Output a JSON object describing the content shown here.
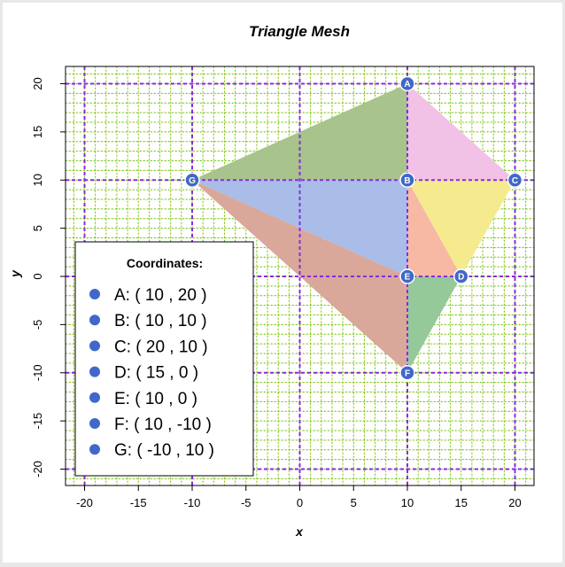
{
  "chart_data": {
    "type": "scatter",
    "title": "Triangle Mesh",
    "xlabel": "x",
    "ylabel": "y",
    "xlim": [
      -22,
      22
    ],
    "ylim": [
      -22,
      22
    ],
    "x_ticks": [
      -20,
      -15,
      -10,
      -5,
      0,
      5,
      10,
      15,
      20
    ],
    "y_ticks": [
      -20,
      -15,
      -10,
      -5,
      0,
      5,
      10,
      15,
      20
    ],
    "major_grid": [
      -20,
      -10,
      0,
      10,
      20
    ],
    "vertices": [
      {
        "label": "A",
        "x": 10,
        "y": 20
      },
      {
        "label": "B",
        "x": 10,
        "y": 10
      },
      {
        "label": "C",
        "x": 20,
        "y": 10
      },
      {
        "label": "D",
        "x": 15,
        "y": 0
      },
      {
        "label": "E",
        "x": 10,
        "y": 0
      },
      {
        "label": "F",
        "x": 10,
        "y": -10
      },
      {
        "label": "G",
        "x": -10,
        "y": 10
      }
    ],
    "triangles": [
      {
        "vertices": [
          "A",
          "B",
          "G"
        ],
        "color": "#a8c38b"
      },
      {
        "vertices": [
          "A",
          "C",
          "B"
        ],
        "color": "#f1c1e6"
      },
      {
        "vertices": [
          "B",
          "C",
          "D"
        ],
        "color": "#f6ea8e"
      },
      {
        "vertices": [
          "B",
          "D",
          "E"
        ],
        "color": "#f7b8a4"
      },
      {
        "vertices": [
          "B",
          "E",
          "G"
        ],
        "color": "#a9bde8"
      },
      {
        "vertices": [
          "G",
          "E",
          "F"
        ],
        "color": "#d9a89a"
      },
      {
        "vertices": [
          "E",
          "D",
          "F"
        ],
        "color": "#95c99a"
      }
    ],
    "vertex_color": "#4068c8",
    "legend": {
      "title": "Coordinates:",
      "position": "bottom-left",
      "entries": [
        "A: ( 10 , 20 )",
        "B: ( 10 , 10 )",
        "C: ( 20 , 10 )",
        "D: ( 15 , 0 )",
        "E: ( 10 , 0 )",
        "F: ( 10 , -10 )",
        "G: ( -10 , 10 )"
      ]
    }
  }
}
